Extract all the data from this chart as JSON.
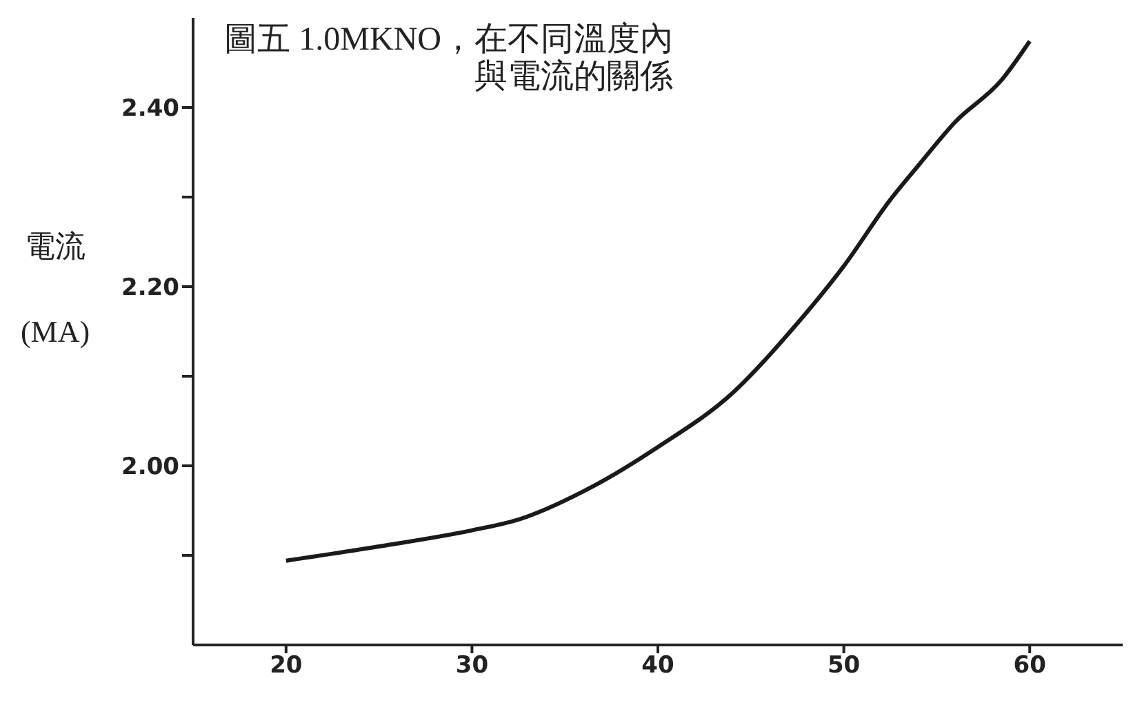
{
  "chart_data": {
    "type": "line",
    "title": "圖五 1.0MKNO，在不同溫度內與電流的關係",
    "ylabel": "電流 (MA)",
    "x": [
      20,
      25,
      30,
      32.5,
      36.5,
      40,
      44,
      47.5,
      50,
      52.5,
      54,
      56,
      58.5,
      60
    ],
    "series": [
      {
        "color": "#1a1a1a",
        "values": [
          1.894,
          1.91,
          1.928,
          1.94,
          1.977,
          2.021,
          2.081,
          2.159,
          2.223,
          2.297,
          2.335,
          2.384,
          2.431,
          2.474
        ]
      }
    ],
    "xlim": [
      15,
      65
    ],
    "xticks": [
      20,
      30,
      40,
      50,
      60
    ],
    "ylim": [
      1.8,
      2.5
    ],
    "yticks": [
      {
        "value": 1.9,
        "label": null
      },
      {
        "value": 2,
        "label": "2.00"
      },
      {
        "value": 2.1,
        "label": null
      },
      {
        "value": 2.2,
        "label": "2.20"
      },
      {
        "value": 2.3,
        "label": null
      },
      {
        "value": 2.4,
        "label": "2.40"
      }
    ],
    "grid": false,
    "legend": false,
    "marker": "none",
    "line_style": "solid"
  }
}
